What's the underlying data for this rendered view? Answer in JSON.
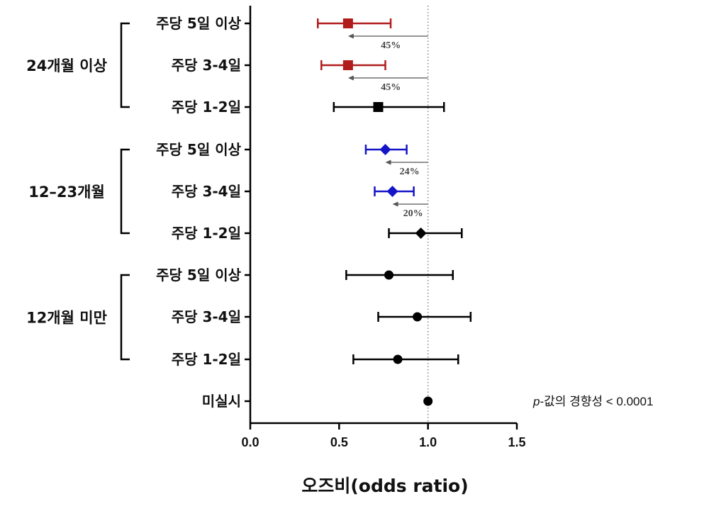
{
  "chart_data": {
    "type": "forest",
    "xlabel": "오즈비(odds ratio)",
    "xlim": [
      0.0,
      1.5
    ],
    "xticks": [
      "0.0",
      "0.5",
      "1.0",
      "1.5"
    ],
    "reference_line": 1.0,
    "groups": [
      {
        "label": "24개월 이상",
        "rows": [
          0,
          1,
          2
        ]
      },
      {
        "label": "12–23개월",
        "rows": [
          3,
          4,
          5
        ]
      },
      {
        "label": "12개월 미만",
        "rows": [
          6,
          7,
          8
        ]
      }
    ],
    "rows": [
      {
        "label": "주당 5일 이상",
        "or": 0.55,
        "lo": 0.38,
        "hi": 0.79,
        "marker": "square",
        "color": "#b01c1c",
        "reduction": "45%"
      },
      {
        "label": "주당 3-4일",
        "or": 0.55,
        "lo": 0.4,
        "hi": 0.76,
        "marker": "square",
        "color": "#b01c1c",
        "reduction": "45%"
      },
      {
        "label": "주당 1-2일",
        "or": 0.72,
        "lo": 0.47,
        "hi": 1.09,
        "marker": "square",
        "color": "#000000"
      },
      {
        "label": "주당 5일 이상",
        "or": 0.76,
        "lo": 0.65,
        "hi": 0.88,
        "marker": "diamond",
        "color": "#1515c8",
        "reduction": "24%"
      },
      {
        "label": "주당 3-4일",
        "or": 0.8,
        "lo": 0.7,
        "hi": 0.92,
        "marker": "diamond",
        "color": "#1515c8",
        "reduction": "20%"
      },
      {
        "label": "주당 1-2일",
        "or": 0.96,
        "lo": 0.78,
        "hi": 1.19,
        "marker": "diamond",
        "color": "#000000"
      },
      {
        "label": "주당 5일 이상",
        "or": 0.78,
        "lo": 0.54,
        "hi": 1.14,
        "marker": "circle",
        "color": "#000000"
      },
      {
        "label": "주당 3-4일",
        "or": 0.94,
        "lo": 0.72,
        "hi": 1.24,
        "marker": "circle",
        "color": "#000000"
      },
      {
        "label": "주당 1-2일",
        "or": 0.83,
        "lo": 0.58,
        "hi": 1.17,
        "marker": "circle",
        "color": "#000000"
      },
      {
        "label": "미실시",
        "or": 1.0,
        "marker": "circle",
        "color": "#000000"
      }
    ],
    "annotation": {
      "p_symbol": "p",
      "text": "-값의 경향성 < 0.0001"
    }
  }
}
